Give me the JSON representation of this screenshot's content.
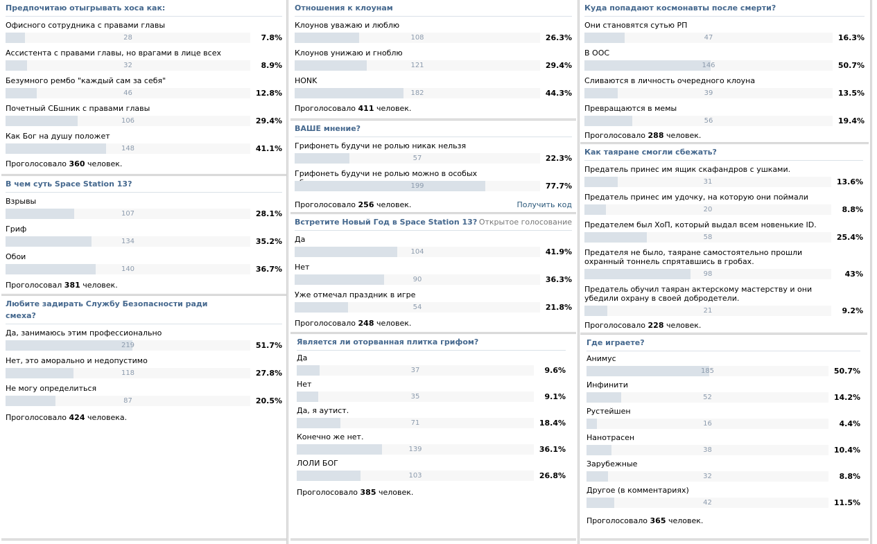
{
  "polls": [
    [
      {
        "title": "Предпочитаю отыгрывать хоса как:",
        "type": "",
        "options": [
          {
            "label": "Офисного сотрудника с правами главы",
            "count": "28",
            "pct": "7.8%",
            "frac": 0.078
          },
          {
            "label": "Ассистента с правами главы, но врагами в лице всех ассистентов",
            "count": "32",
            "pct": "8.9%",
            "frac": 0.089
          },
          {
            "label": "Безумного рембо \"каждый сам за себя\"",
            "count": "46",
            "pct": "12.8%",
            "frac": 0.128
          },
          {
            "label": "Почетный СБшник с правами главы",
            "count": "106",
            "pct": "29.4%",
            "frac": 0.294
          },
          {
            "label": "Как Бог на душу положет",
            "count": "148",
            "pct": "41.1%",
            "frac": 0.411
          }
        ],
        "total_prefix": "Проголосовало",
        "total_count": "360",
        "total_suffix": "человек.",
        "link": ""
      },
      {
        "title": "В чем суть Space Station 13?",
        "type": "",
        "options": [
          {
            "label": "Взрывы",
            "count": "107",
            "pct": "28.1%",
            "frac": 0.281
          },
          {
            "label": "Гриф",
            "count": "134",
            "pct": "35.2%",
            "frac": 0.352
          },
          {
            "label": "Обои",
            "count": "140",
            "pct": "36.7%",
            "frac": 0.367
          }
        ],
        "total_prefix": "Проголосовал",
        "total_count": "381",
        "total_suffix": "человек.",
        "link": ""
      },
      {
        "title": "Любите задирать Службу Безопасности ради смеха?",
        "type": "",
        "options": [
          {
            "label": "Да, занимаюсь этим профессионально",
            "count": "219",
            "pct": "51.7%",
            "frac": 0.517
          },
          {
            "label": "Нет, это аморально и недопустимо",
            "count": "118",
            "pct": "27.8%",
            "frac": 0.278
          },
          {
            "label": "Не могу определиться",
            "count": "87",
            "pct": "20.5%",
            "frac": 0.205
          }
        ],
        "total_prefix": "Проголосовало",
        "total_count": "424",
        "total_suffix": "человека.",
        "link": ""
      }
    ],
    [
      {
        "title": "Отношения к клоунам",
        "type": "",
        "options": [
          {
            "label": "Клоунов уважаю и люблю",
            "count": "108",
            "pct": "26.3%",
            "frac": 0.263
          },
          {
            "label": "Клоунов унижаю и гноблю",
            "count": "121",
            "pct": "29.4%",
            "frac": 0.294
          },
          {
            "label": "HONK",
            "count": "182",
            "pct": "44.3%",
            "frac": 0.443
          }
        ],
        "total_prefix": "Проголосовало",
        "total_count": "411",
        "total_suffix": "человек.",
        "link": ""
      },
      {
        "title": "ВАШЕ мнение?",
        "type": "",
        "options": [
          {
            "label": "Грифонеть будучи не ролью никак нельзя",
            "count": "57",
            "pct": "22.3%",
            "frac": 0.223
          },
          {
            "label": "Грифонеть будучи не ролью можно в особых обстоятельствах",
            "count": "199",
            "pct": "77.7%",
            "frac": 0.777
          }
        ],
        "total_prefix": "Проголосовало",
        "total_count": "256",
        "total_suffix": "человек.",
        "link": "Получить код"
      },
      {
        "title": "Встретите Новый Год в Space Station 13?",
        "type": "Открытое голосование",
        "options": [
          {
            "label": "Да",
            "count": "104",
            "pct": "41.9%",
            "frac": 0.419
          },
          {
            "label": "Нет",
            "count": "90",
            "pct": "36.3%",
            "frac": 0.363
          },
          {
            "label": "Уже отмечал праздник в игре",
            "count": "54",
            "pct": "21.8%",
            "frac": 0.218
          }
        ],
        "total_prefix": "Проголосовало",
        "total_count": "248",
        "total_suffix": "человек.",
        "link": ""
      },
      {
        "title": "Является ли оторванная плитка грифом?",
        "type": "",
        "options": [
          {
            "label": "Да",
            "count": "37",
            "pct": "9.6%",
            "frac": 0.096
          },
          {
            "label": "Нет",
            "count": "35",
            "pct": "9.1%",
            "frac": 0.091
          },
          {
            "label": "Да, я аутист.",
            "count": "71",
            "pct": "18.4%",
            "frac": 0.184
          },
          {
            "label": "Конечно же нет.",
            "count": "139",
            "pct": "36.1%",
            "frac": 0.361
          },
          {
            "label": "ЛОЛИ БОГ",
            "count": "103",
            "pct": "26.8%",
            "frac": 0.268
          }
        ],
        "total_prefix": "Проголосовало",
        "total_count": "385",
        "total_suffix": "человек.",
        "link": ""
      }
    ],
    [
      {
        "title": "Куда попадают космонавты после смерти?",
        "type": "",
        "options": [
          {
            "label": "Они становятся сутью РП",
            "count": "47",
            "pct": "16.3%",
            "frac": 0.163
          },
          {
            "label": "В ООС",
            "count": "146",
            "pct": "50.7%",
            "frac": 0.507
          },
          {
            "label": "Сливаются в личность очередного клоуна",
            "count": "39",
            "pct": "13.5%",
            "frac": 0.135
          },
          {
            "label": "Превращаются в мемы",
            "count": "56",
            "pct": "19.4%",
            "frac": 0.194
          }
        ],
        "total_prefix": "Проголосовало",
        "total_count": "288",
        "total_suffix": "человек.",
        "link": ""
      },
      {
        "title": "Как таяране смогли сбежать?",
        "type": "",
        "options": [
          {
            "label": "Предатель принес им ящик скафандров с ушками.",
            "count": "31",
            "pct": "13.6%",
            "frac": 0.136
          },
          {
            "label": "Предатель принес им удочку, на которую они поймали космического карпа.",
            "count": "20",
            "pct": "8.8%",
            "frac": 0.088
          },
          {
            "label": "Предателем был ХоП, который выдал всем новенькие ID.",
            "count": "58",
            "pct": "25.4%",
            "frac": 0.254
          },
          {
            "label": "Предателя не было, таяране самостоятельно прошли охранный тоннель спрятавшись в гробах.",
            "count": "98",
            "pct": "43%",
            "frac": 0.43
          },
          {
            "label": "Предатель обучил таяран актерскому мастерству и они убедили охрану в своей добродетели.",
            "count": "21",
            "pct": "9.2%",
            "frac": 0.092
          }
        ],
        "total_prefix": "Проголосовало",
        "total_count": "228",
        "total_suffix": "человек.",
        "link": ""
      },
      {
        "title": "Где играете?",
        "type": "",
        "options": [
          {
            "label": "Анимус",
            "count": "185",
            "pct": "50.7%",
            "frac": 0.507
          },
          {
            "label": "Инфинити",
            "count": "52",
            "pct": "14.2%",
            "frac": 0.142
          },
          {
            "label": "Рустейшен",
            "count": "16",
            "pct": "4.4%",
            "frac": 0.044
          },
          {
            "label": "Нанотрасен",
            "count": "38",
            "pct": "10.4%",
            "frac": 0.104
          },
          {
            "label": "Зарубежные",
            "count": "32",
            "pct": "8.8%",
            "frac": 0.088
          },
          {
            "label": "Другое (в комментариях)",
            "count": "42",
            "pct": "11.5%",
            "frac": 0.115
          }
        ],
        "total_prefix": "Проголосовало",
        "total_count": "365",
        "total_suffix": "человек.",
        "link": ""
      }
    ]
  ]
}
